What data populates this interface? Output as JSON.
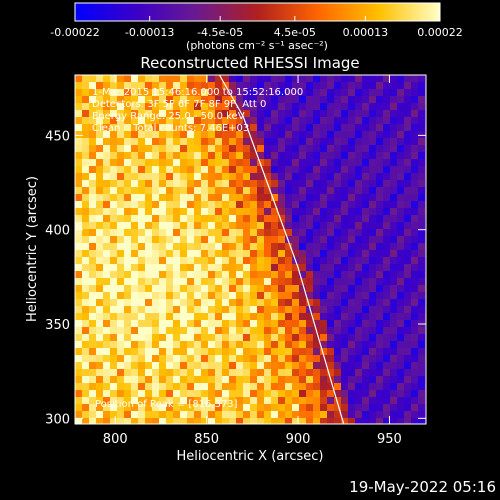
{
  "chart_data": {
    "type": "heatmap",
    "title": "Reconstructed RHESSI Image",
    "xlabel": "Heliocentric X (arcsec)",
    "ylabel": "Heliocentric Y (arcsec)",
    "xlim": [
      778,
      970
    ],
    "ylim": [
      297,
      482
    ],
    "x_ticks": [
      800,
      850,
      900,
      950
    ],
    "y_ticks": [
      300,
      350,
      400,
      450
    ],
    "colorbar": {
      "min": -0.00022,
      "max": 0.00022,
      "tick_values": [
        -0.00022,
        -0.00013,
        -4.5e-05,
        4.5e-05,
        0.00013,
        0.00022
      ],
      "tick_labels": [
        "-0.00022",
        "-0.00013",
        "-4.5e-05",
        "4.5e-05",
        "0.00013",
        "0.00022"
      ],
      "unit_label": "(photons cm⁻² s⁻¹ asec⁻²)",
      "colors": [
        "#0000ff",
        "#3b00c8",
        "#6a1a90",
        "#b02020",
        "#ff6600",
        "#ffc000",
        "#ffffc8"
      ]
    },
    "annotations": [
      "1-Mar-2015 15:46:16.000 to 15:52:16.000",
      "Detectors: 3F 5F 6F 7F 8F 9F, Att 0",
      "Energy Range: 25.0 - 50.0 keV",
      "Clean    Total counts: 7.46E+03"
    ],
    "peak_label": "Position of Peak = [816,373]",
    "peak_position": [
      816,
      373
    ],
    "limb_curve": [
      [
        857,
        482
      ],
      [
        870,
        460
      ],
      [
        885,
        420
      ],
      [
        900,
        380
      ],
      [
        912,
        340
      ],
      [
        925,
        297
      ]
    ],
    "timestamp": "19-May-2022 05:16"
  }
}
